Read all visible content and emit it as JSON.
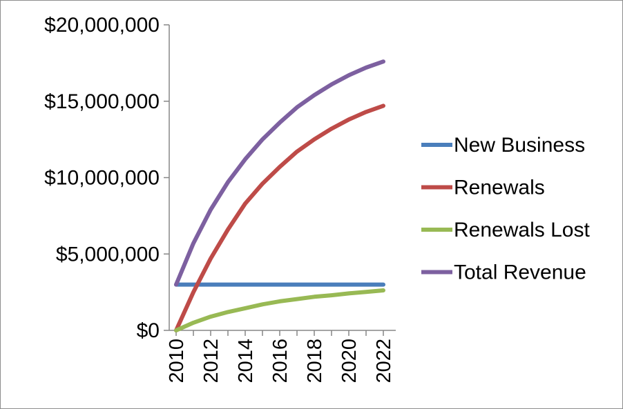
{
  "chart_data": {
    "type": "line",
    "title": "",
    "xlabel": "",
    "ylabel": "",
    "x": [
      2010,
      2011,
      2012,
      2013,
      2014,
      2015,
      2016,
      2017,
      2018,
      2019,
      2020,
      2021,
      2022
    ],
    "x_tick_labels": [
      "2010",
      "2012",
      "2014",
      "2016",
      "2018",
      "2020",
      "2022"
    ],
    "x_tick_values": [
      2010,
      2012,
      2014,
      2016,
      2018,
      2020,
      2022
    ],
    "xlim": [
      2010,
      2022
    ],
    "ylim": [
      0,
      20000000
    ],
    "y_tick_values": [
      0,
      5000000,
      10000000,
      15000000,
      20000000
    ],
    "y_tick_labels": [
      "$0",
      "$5,000,000",
      "$10,000,000",
      "$15,000,000",
      "$20,000,000"
    ],
    "grid": false,
    "legend_position": "right",
    "series": [
      {
        "name": "New Business",
        "color": "#4a7ebb",
        "values": [
          3000000,
          3000000,
          3000000,
          3000000,
          3000000,
          3000000,
          3000000,
          3000000,
          3000000,
          3000000,
          3000000,
          3000000,
          3000000
        ]
      },
      {
        "name": "Renewals",
        "color": "#be4b48",
        "values": [
          0,
          2500000,
          4700000,
          6600000,
          8300000,
          9600000,
          10700000,
          11700000,
          12500000,
          13200000,
          13800000,
          14300000,
          14700000
        ]
      },
      {
        "name": "Renewals Lost",
        "color": "#98b954",
        "values": [
          0,
          500000,
          900000,
          1200000,
          1450000,
          1700000,
          1900000,
          2050000,
          2200000,
          2300000,
          2420000,
          2520000,
          2620000
        ]
      },
      {
        "name": "Total Revenue",
        "color": "#7d60a0",
        "values": [
          3000000,
          5700000,
          7900000,
          9700000,
          11200000,
          12500000,
          13600000,
          14600000,
          15400000,
          16100000,
          16700000,
          17200000,
          17600000
        ]
      }
    ]
  }
}
